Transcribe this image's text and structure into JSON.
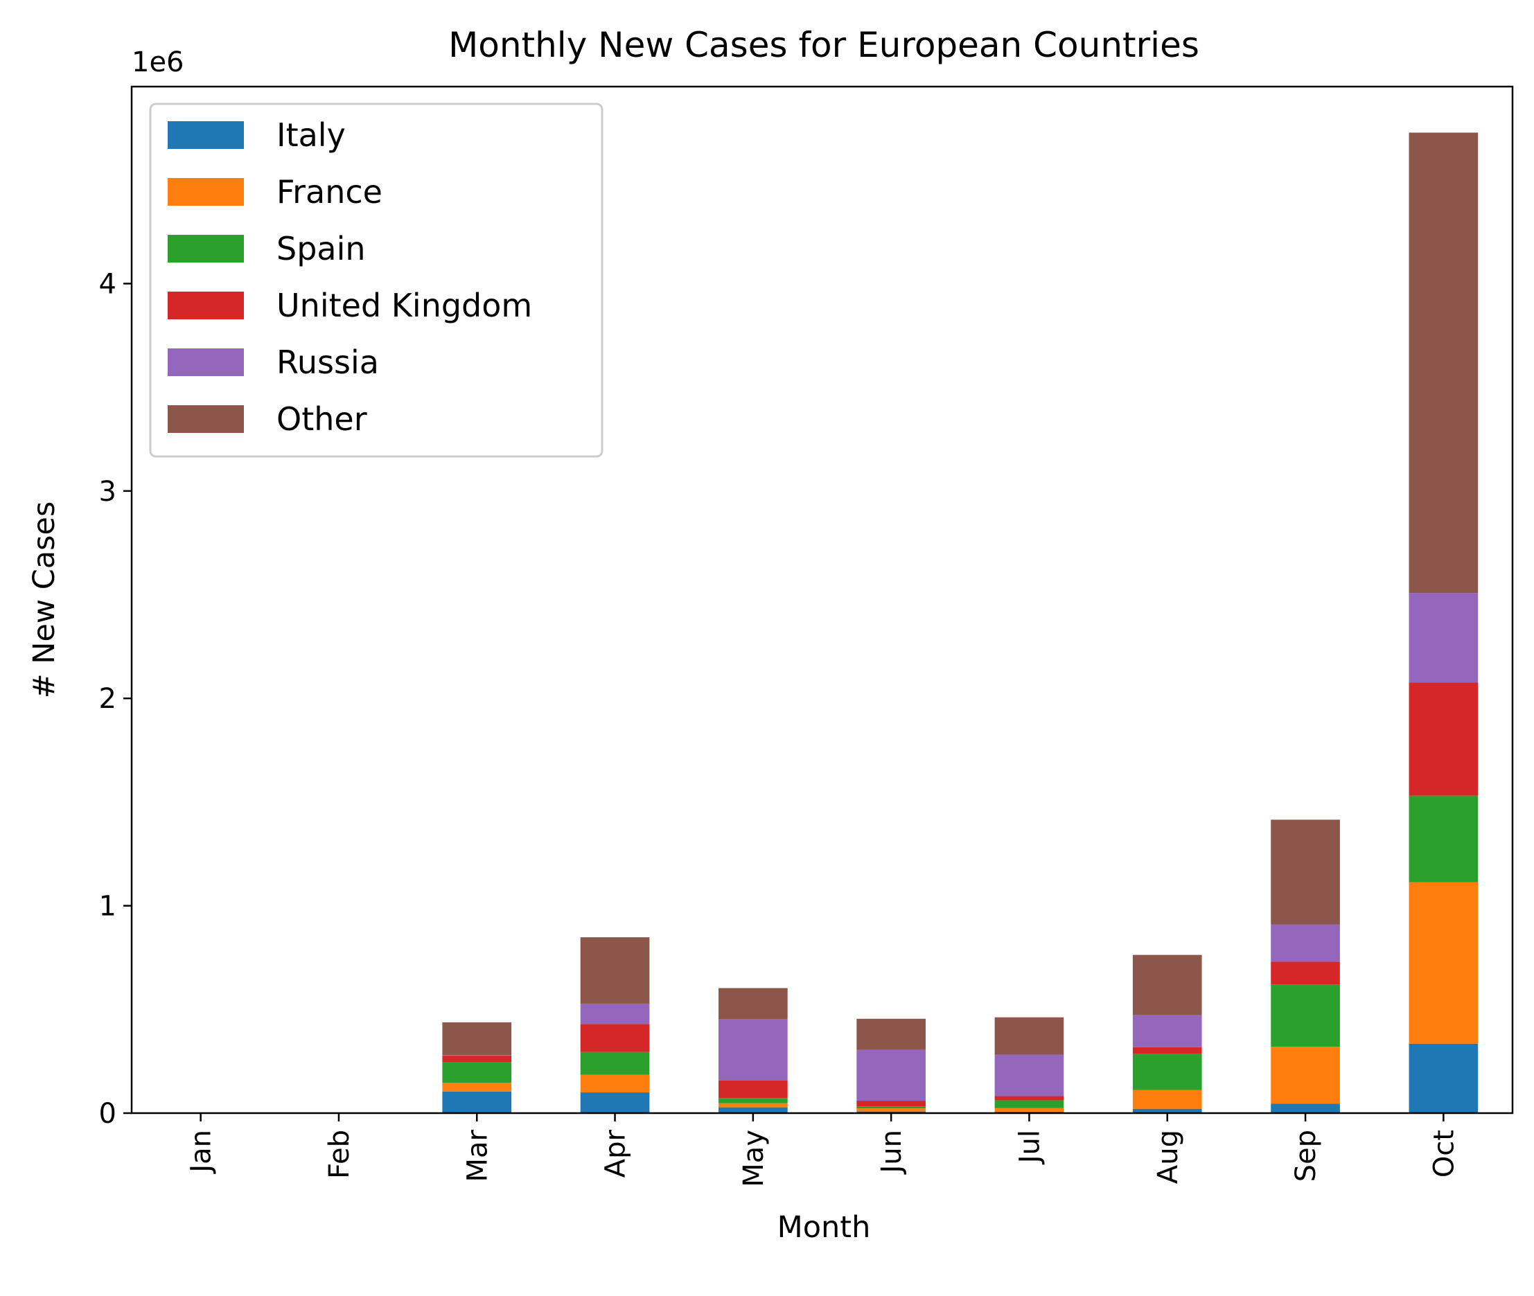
{
  "chart_data": {
    "type": "bar",
    "stacked": true,
    "title": "Monthly New Cases for European Countries",
    "xlabel": "Month",
    "ylabel": "# New Cases",
    "y_offset_label": "1e6",
    "categories": [
      "Jan",
      "Feb",
      "Mar",
      "Apr",
      "May",
      "Jun",
      "Jul",
      "Aug",
      "Sep",
      "Oct"
    ],
    "ylim": [
      0,
      4950000
    ],
    "yticks": [
      0,
      1000000,
      2000000,
      3000000,
      4000000
    ],
    "ytick_labels": [
      "0",
      "1",
      "2",
      "3",
      "4"
    ],
    "grid": false,
    "legend_position": "upper-left",
    "series": [
      {
        "name": "Italy",
        "color": "#1f77b4",
        "values": [
          3,
          1100,
          104000,
          100000,
          28000,
          8000,
          7000,
          21000,
          45000,
          335000
        ]
      },
      {
        "name": "France",
        "color": "#ff7f0e",
        "values": [
          5,
          100,
          43000,
          85000,
          20000,
          15000,
          17000,
          90000,
          275000,
          778000
        ]
      },
      {
        "name": "Spain",
        "color": "#2ca02c",
        "values": [
          1,
          80,
          98000,
          110000,
          25000,
          10000,
          38000,
          175000,
          300000,
          418000
        ]
      },
      {
        "name": "United Kingdom",
        "color": "#d62728",
        "values": [
          2,
          20,
          32000,
          135000,
          85000,
          27000,
          20000,
          32000,
          110000,
          545000
        ]
      },
      {
        "name": "Russia",
        "color": "#9467bd",
        "values": [
          0,
          0,
          3000,
          98000,
          295000,
          245000,
          200000,
          155000,
          180000,
          432000
        ]
      },
      {
        "name": "Other",
        "color": "#8c564b",
        "values": [
          5,
          100,
          158000,
          320000,
          150000,
          150000,
          180000,
          290000,
          505000,
          2220000
        ]
      }
    ]
  }
}
